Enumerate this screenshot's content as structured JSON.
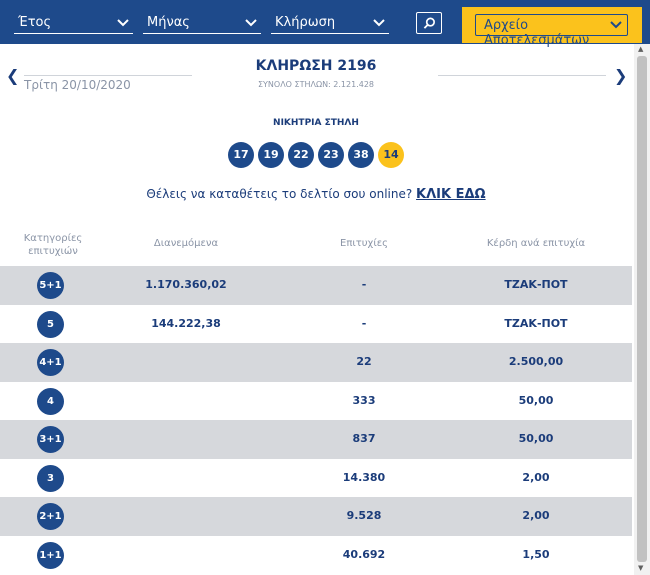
{
  "filters": {
    "year_label": "Έτος",
    "month_label": "Μήνας",
    "draw_label": "Κλήρωση",
    "search_icon": "search-icon",
    "archive_label": "Αρχείο Αποτελεσμάτων"
  },
  "draw": {
    "date": "Τρίτη 20/10/2020",
    "title": "ΚΛΗΡΩΣΗ 2196",
    "total_columns": "ΣΥΝΟΛΟ ΣΤΗΛΩΝ: 2.121.428",
    "prev_icon": "chevron-left-icon",
    "next_icon": "chevron-right-icon"
  },
  "winning": {
    "label": "ΝΙΚΗΤΡΙΑ ΣΤΗΛΗ",
    "numbers": [
      "17",
      "19",
      "22",
      "23",
      "38"
    ],
    "bonus": "14"
  },
  "promo": {
    "text": "Θέλεις να καταθέτεις το δελτίο σου online? ",
    "link": "ΚΛΙΚ ΕΔΩ"
  },
  "table": {
    "headers": {
      "category": "Κατηγορίες επιτυχιών",
      "distributed": "Διανεμόμενα",
      "winners": "Επιτυχίες",
      "prize": "Κέρδη ανά επιτυχία"
    },
    "rows": [
      {
        "category": "5+1",
        "distributed": "1.170.360,02",
        "winners": "-",
        "prize": "ΤΖΑΚ-ΠΟΤ"
      },
      {
        "category": "5",
        "distributed": "144.222,38",
        "winners": "-",
        "prize": "ΤΖΑΚ-ΠΟΤ"
      },
      {
        "category": "4+1",
        "distributed": "",
        "winners": "22",
        "prize": "2.500,00"
      },
      {
        "category": "4",
        "distributed": "",
        "winners": "333",
        "prize": "50,00"
      },
      {
        "category": "3+1",
        "distributed": "",
        "winners": "837",
        "prize": "50,00"
      },
      {
        "category": "3",
        "distributed": "",
        "winners": "14.380",
        "prize": "2,00"
      },
      {
        "category": "2+1",
        "distributed": "",
        "winners": "9.528",
        "prize": "2,00"
      },
      {
        "category": "1+1",
        "distributed": "",
        "winners": "40.692",
        "prize": "1,50"
      }
    ]
  },
  "colors": {
    "primary": "#1e4a8b",
    "accent": "#fbc21c",
    "row_alt": "#d6d8dc"
  }
}
